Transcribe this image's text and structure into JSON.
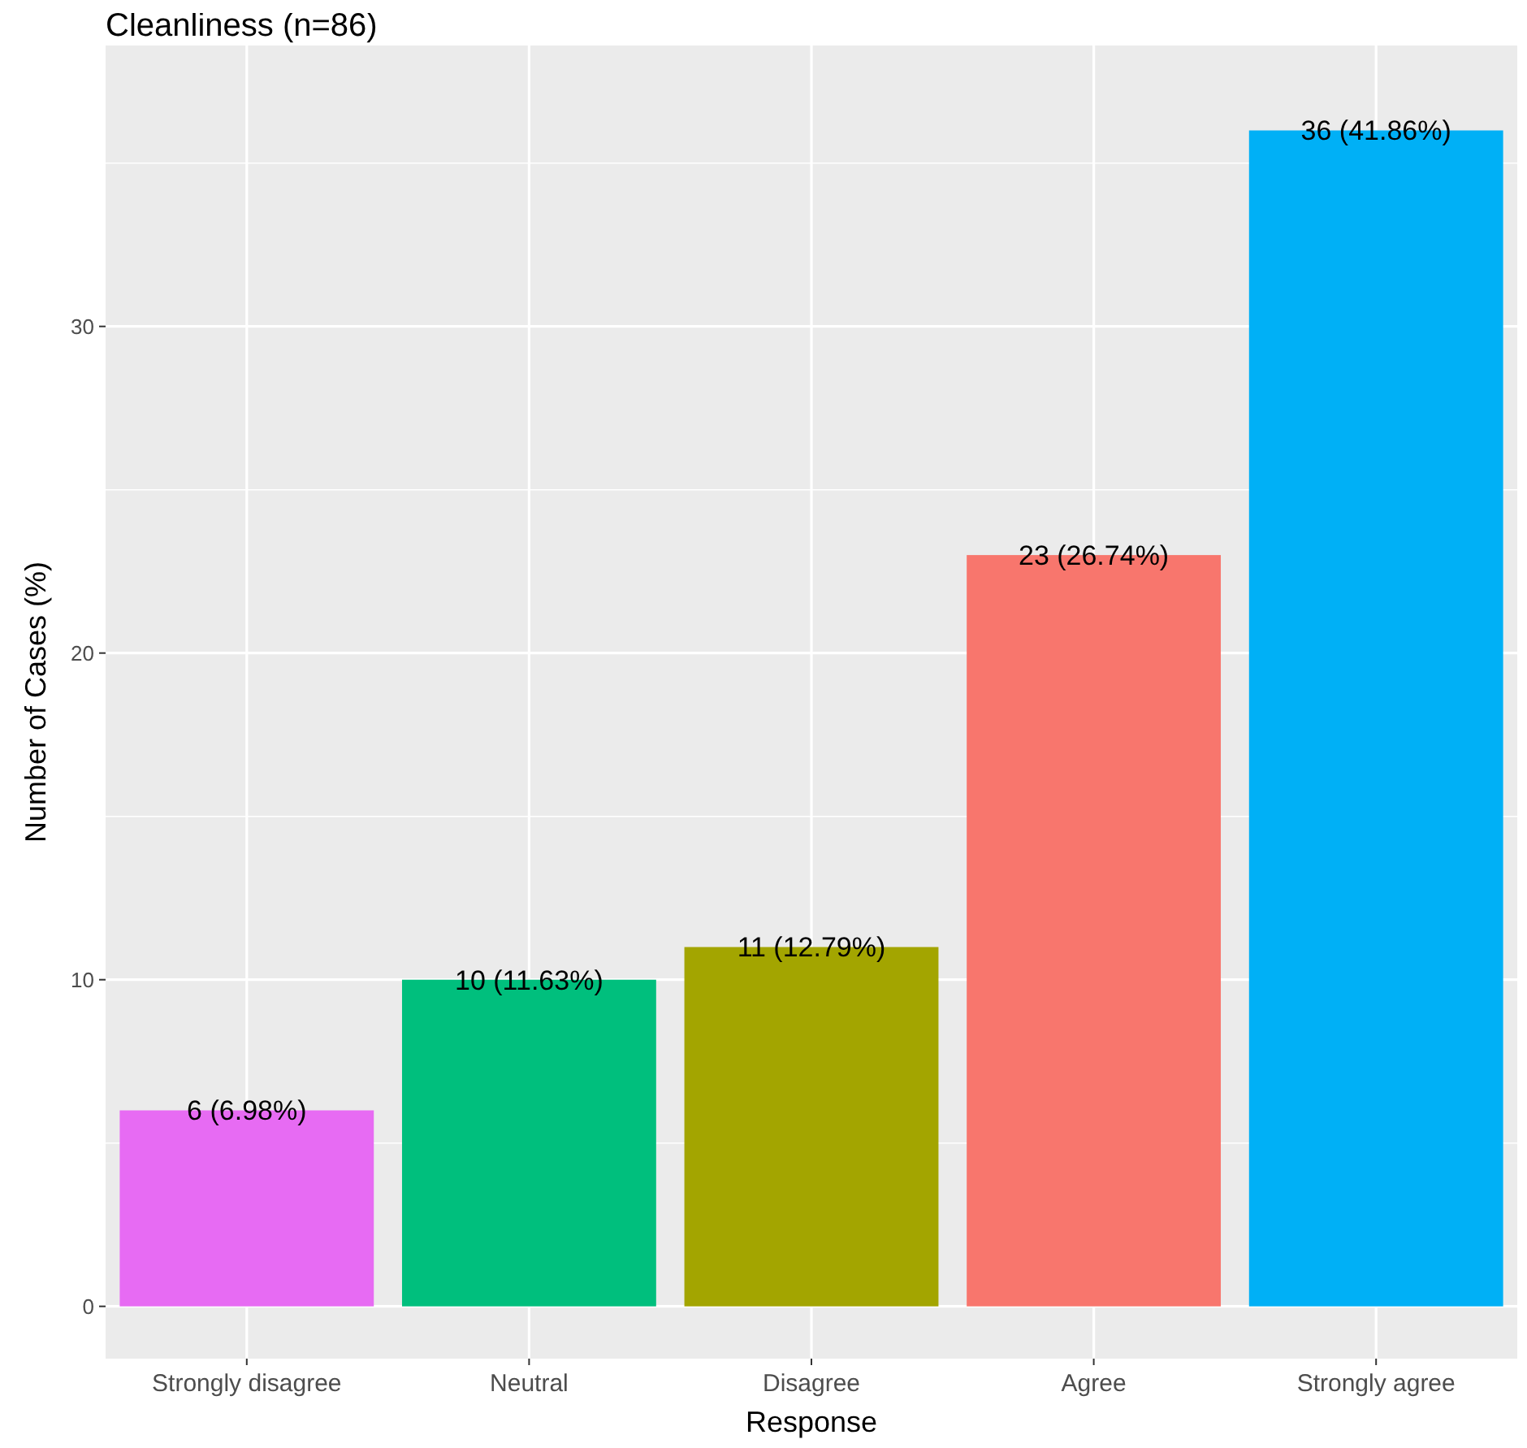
{
  "chart_data": {
    "type": "bar",
    "title": "Cleanliness (n=86)",
    "xlabel": "Response",
    "ylabel": "Number of Cases (%)",
    "categories": [
      "Strongly disagree",
      "Neutral",
      "Disagree",
      "Agree",
      "Strongly agree"
    ],
    "values": [
      6,
      10,
      11,
      23,
      36
    ],
    "colors": [
      "#e76bf3",
      "#00bf7d",
      "#a3a500",
      "#f8766d",
      "#00b0f6"
    ],
    "value_labels": [
      "6 (6.98%)",
      "10 (11.63%)",
      "11 (12.79%)",
      "23 (26.74%)",
      "36 (41.86%)"
    ],
    "ylim": [
      -1.6,
      38.6
    ],
    "yticks": [
      0,
      {
        "value": 5,
        "label": null
      },
      10,
      {
        "value": 15,
        "label": null
      },
      20,
      {
        "value": 25,
        "label": null
      },
      30,
      {
        "value": 35,
        "label": null
      }
    ],
    "grid": true
  }
}
